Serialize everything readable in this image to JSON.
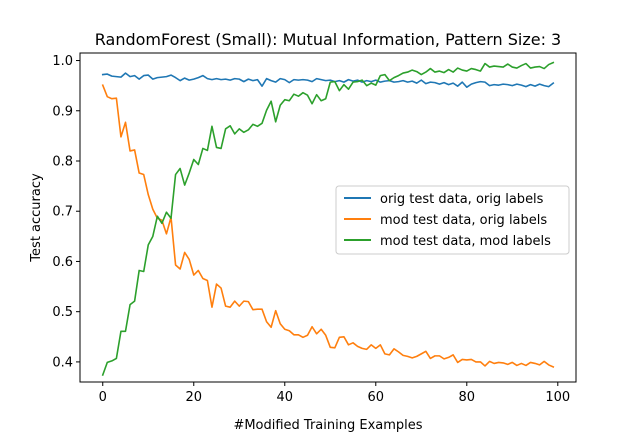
{
  "chart_data": {
    "type": "line",
    "title": "RandomForest (Small): Mutual Information, Pattern Size: 3",
    "xlabel": "#Modified Training Examples",
    "ylabel": "Test accuracy",
    "xlim": [
      -5,
      104
    ],
    "ylim": [
      0.36,
      1.015
    ],
    "xticks": [
      0,
      20,
      40,
      60,
      80,
      100
    ],
    "yticks": [
      0.4,
      0.5,
      0.6,
      0.7,
      0.8,
      0.9,
      1.0
    ],
    "xtick_labels": [
      "0",
      "20",
      "40",
      "60",
      "80",
      "100"
    ],
    "ytick_labels": [
      "0.4",
      "0.5",
      "0.6",
      "0.7",
      "0.8",
      "0.9",
      "1.0"
    ],
    "grid": false,
    "legend_position": "center-right",
    "x": [
      0,
      1,
      2,
      3,
      4,
      5,
      6,
      7,
      8,
      9,
      10,
      11,
      12,
      13,
      14,
      15,
      16,
      17,
      18,
      19,
      20,
      21,
      22,
      23,
      24,
      25,
      26,
      27,
      28,
      29,
      30,
      31,
      32,
      33,
      34,
      35,
      36,
      37,
      38,
      39,
      40,
      41,
      42,
      43,
      44,
      45,
      46,
      47,
      48,
      49,
      50,
      51,
      52,
      53,
      54,
      55,
      56,
      57,
      58,
      59,
      60,
      61,
      62,
      63,
      64,
      65,
      66,
      67,
      68,
      69,
      70,
      71,
      72,
      73,
      74,
      75,
      76,
      77,
      78,
      79,
      80,
      81,
      82,
      83,
      84,
      85,
      86,
      87,
      88,
      89,
      90,
      91,
      92,
      93,
      94,
      95,
      96,
      97,
      98,
      99
    ],
    "series": [
      {
        "name": "orig test data, orig labels",
        "color": "#1f77b4",
        "values": [
          0.972,
          0.973,
          0.969,
          0.968,
          0.967,
          0.975,
          0.968,
          0.97,
          0.963,
          0.97,
          0.971,
          0.963,
          0.966,
          0.967,
          0.968,
          0.971,
          0.966,
          0.96,
          0.965,
          0.961,
          0.963,
          0.966,
          0.97,
          0.964,
          0.962,
          0.964,
          0.962,
          0.963,
          0.961,
          0.964,
          0.963,
          0.958,
          0.963,
          0.96,
          0.962,
          0.949,
          0.964,
          0.96,
          0.957,
          0.964,
          0.962,
          0.956,
          0.962,
          0.961,
          0.962,
          0.961,
          0.958,
          0.964,
          0.962,
          0.96,
          0.961,
          0.958,
          0.96,
          0.957,
          0.962,
          0.959,
          0.961,
          0.957,
          0.96,
          0.958,
          0.961,
          0.957,
          0.959,
          0.96,
          0.957,
          0.958,
          0.96,
          0.957,
          0.959,
          0.955,
          0.961,
          0.954,
          0.957,
          0.956,
          0.953,
          0.956,
          0.952,
          0.955,
          0.949,
          0.957,
          0.947,
          0.953,
          0.956,
          0.958,
          0.957,
          0.95,
          0.952,
          0.951,
          0.953,
          0.952,
          0.95,
          0.953,
          0.951,
          0.948,
          0.952,
          0.949,
          0.953,
          0.95,
          0.948,
          0.955
        ]
      },
      {
        "name": "mod test data, orig labels",
        "color": "#ff7f0e",
        "values": [
          0.951,
          0.928,
          0.924,
          0.925,
          0.848,
          0.877,
          0.82,
          0.822,
          0.776,
          0.773,
          0.733,
          0.704,
          0.686,
          0.682,
          0.655,
          0.688,
          0.593,
          0.585,
          0.618,
          0.604,
          0.573,
          0.582,
          0.566,
          0.562,
          0.509,
          0.555,
          0.547,
          0.511,
          0.509,
          0.521,
          0.511,
          0.521,
          0.52,
          0.504,
          0.505,
          0.505,
          0.48,
          0.469,
          0.502,
          0.476,
          0.465,
          0.462,
          0.454,
          0.454,
          0.449,
          0.453,
          0.47,
          0.456,
          0.465,
          0.453,
          0.429,
          0.428,
          0.449,
          0.45,
          0.434,
          0.438,
          0.431,
          0.427,
          0.425,
          0.434,
          0.427,
          0.434,
          0.416,
          0.414,
          0.426,
          0.42,
          0.413,
          0.411,
          0.408,
          0.411,
          0.416,
          0.421,
          0.407,
          0.412,
          0.412,
          0.406,
          0.409,
          0.414,
          0.399,
          0.405,
          0.404,
          0.405,
          0.4,
          0.4,
          0.392,
          0.401,
          0.397,
          0.399,
          0.398,
          0.395,
          0.399,
          0.393,
          0.397,
          0.393,
          0.399,
          0.397,
          0.394,
          0.401,
          0.394,
          0.39
        ]
      },
      {
        "name": "mod test data, mod labels",
        "color": "#2ca02c",
        "values": [
          0.374,
          0.399,
          0.402,
          0.407,
          0.461,
          0.461,
          0.514,
          0.521,
          0.582,
          0.58,
          0.633,
          0.65,
          0.69,
          0.676,
          0.698,
          0.686,
          0.773,
          0.785,
          0.752,
          0.776,
          0.803,
          0.793,
          0.825,
          0.821,
          0.869,
          0.827,
          0.825,
          0.864,
          0.87,
          0.854,
          0.864,
          0.857,
          0.862,
          0.873,
          0.869,
          0.875,
          0.901,
          0.919,
          0.878,
          0.911,
          0.922,
          0.92,
          0.933,
          0.929,
          0.936,
          0.931,
          0.914,
          0.932,
          0.92,
          0.924,
          0.957,
          0.958,
          0.94,
          0.952,
          0.943,
          0.957,
          0.958,
          0.961,
          0.95,
          0.955,
          0.951,
          0.97,
          0.972,
          0.96,
          0.966,
          0.97,
          0.975,
          0.977,
          0.981,
          0.978,
          0.972,
          0.977,
          0.984,
          0.977,
          0.979,
          0.976,
          0.982,
          0.977,
          0.985,
          0.981,
          0.979,
          0.984,
          0.982,
          0.979,
          0.994,
          0.987,
          0.989,
          0.988,
          0.987,
          0.993,
          0.987,
          0.985,
          0.99,
          0.994,
          0.985,
          0.987,
          0.988,
          0.984,
          0.992,
          0.996
        ]
      }
    ]
  }
}
